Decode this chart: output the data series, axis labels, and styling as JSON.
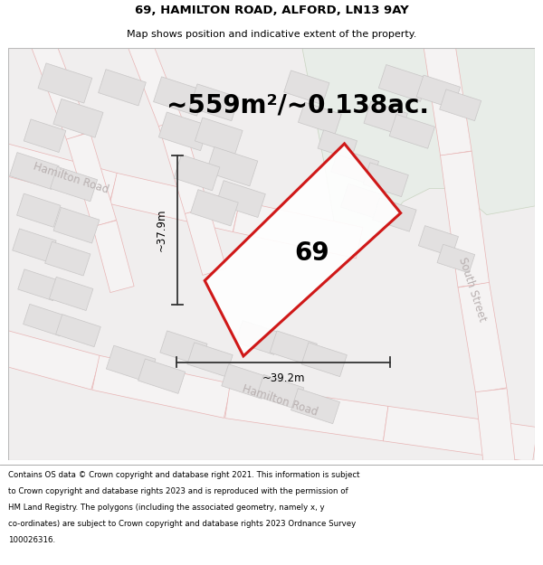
{
  "title_line1": "69, HAMILTON ROAD, ALFORD, LN13 9AY",
  "title_line2": "Map shows position and indicative extent of the property.",
  "area_text": "~559m²/~0.138ac.",
  "width_label": "~39.2m",
  "height_label": "~37.9m",
  "property_number": "69",
  "footer_lines": [
    "Contains OS data © Crown copyright and database right 2021. This information is subject",
    "to Crown copyright and database rights 2023 and is reproduced with the permission of",
    "HM Land Registry. The polygons (including the associated geometry, namely x, y",
    "co-ordinates) are subject to Crown copyright and database rights 2023 Ordnance Survey",
    "100026316."
  ],
  "bg_color": "#ffffff",
  "map_bg": "#f0eeee",
  "building_color": "#e2e0e0",
  "building_edge": "#c8c6c6",
  "property_fill": "#ffffff",
  "property_edge": "#cc0000",
  "green_area": "#e8ede8",
  "green_edge": "#c8d4c0",
  "road_fill": "#f5f3f3",
  "road_edge": "#e8b4b4",
  "dim_line_color": "#333333",
  "road_label_color": "#b8b0b0",
  "title_fontsize": 9.5,
  "subtitle_fontsize": 8.0,
  "area_fontsize": 20,
  "label_fontsize": 8.5,
  "number_fontsize": 20,
  "footer_fontsize": 6.2
}
